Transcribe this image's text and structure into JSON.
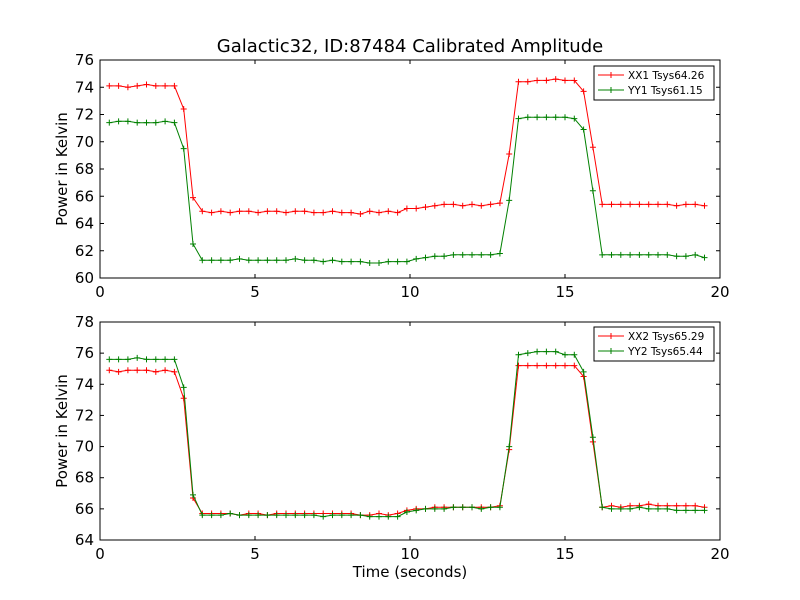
{
  "chart_data": [
    {
      "type": "line",
      "title": "Galactic32, ID:87484 Calibrated Amplitude",
      "xlabel": "",
      "ylabel": "Power in Kelvin",
      "xlim": [
        0,
        20
      ],
      "ylim": [
        60,
        76
      ],
      "xticks": [
        0,
        5,
        10,
        15,
        20
      ],
      "yticks": [
        60,
        62,
        64,
        66,
        68,
        70,
        72,
        74,
        76
      ],
      "grid": false,
      "legend": "top-right",
      "x": [
        0.3,
        0.6,
        0.9,
        1.2,
        1.5,
        1.8,
        2.1,
        2.4,
        2.7,
        3.0,
        3.3,
        3.6,
        3.9,
        4.2,
        4.5,
        4.8,
        5.1,
        5.4,
        5.7,
        6.0,
        6.3,
        6.6,
        6.9,
        7.2,
        7.5,
        7.8,
        8.1,
        8.4,
        8.7,
        9.0,
        9.3,
        9.6,
        9.9,
        10.2,
        10.5,
        10.8,
        11.1,
        11.4,
        11.7,
        12.0,
        12.3,
        12.6,
        12.9,
        13.2,
        13.5,
        13.8,
        14.1,
        14.4,
        14.7,
        15.0,
        15.3,
        15.6,
        15.9,
        16.2,
        16.5,
        16.8,
        17.1,
        17.4,
        17.7,
        18.0,
        18.3,
        18.6,
        18.9,
        19.2,
        19.5
      ],
      "series": [
        {
          "name": "XX1 Tsys64.26",
          "color": "#ff0000",
          "values": [
            74.1,
            74.1,
            74.0,
            74.1,
            74.2,
            74.1,
            74.1,
            74.1,
            72.4,
            65.9,
            64.9,
            64.8,
            64.9,
            64.8,
            64.9,
            64.9,
            64.8,
            64.9,
            64.9,
            64.8,
            64.9,
            64.9,
            64.8,
            64.8,
            64.9,
            64.8,
            64.8,
            64.7,
            64.9,
            64.8,
            64.9,
            64.8,
            65.1,
            65.1,
            65.2,
            65.3,
            65.4,
            65.4,
            65.3,
            65.4,
            65.3,
            65.4,
            65.5,
            69.1,
            74.4,
            74.4,
            74.5,
            74.5,
            74.6,
            74.5,
            74.5,
            73.7,
            69.6,
            65.4,
            65.4,
            65.4,
            65.4,
            65.4,
            65.4,
            65.4,
            65.4,
            65.3,
            65.4,
            65.4,
            65.3
          ]
        },
        {
          "name": "YY1 Tsys61.15",
          "color": "#008000",
          "values": [
            71.4,
            71.5,
            71.5,
            71.4,
            71.4,
            71.4,
            71.5,
            71.4,
            69.5,
            62.5,
            61.3,
            61.3,
            61.3,
            61.3,
            61.4,
            61.3,
            61.3,
            61.3,
            61.3,
            61.3,
            61.4,
            61.3,
            61.3,
            61.2,
            61.3,
            61.2,
            61.2,
            61.2,
            61.1,
            61.1,
            61.2,
            61.2,
            61.2,
            61.4,
            61.5,
            61.6,
            61.6,
            61.7,
            61.7,
            61.7,
            61.7,
            61.7,
            61.8,
            65.7,
            71.7,
            71.8,
            71.8,
            71.8,
            71.8,
            71.8,
            71.7,
            70.9,
            66.4,
            61.7,
            61.7,
            61.7,
            61.7,
            61.7,
            61.7,
            61.7,
            61.7,
            61.6,
            61.6,
            61.7,
            61.5
          ]
        }
      ]
    },
    {
      "type": "line",
      "title": "",
      "xlabel": "Time (seconds)",
      "ylabel": "Power in Kelvin",
      "xlim": [
        0,
        20
      ],
      "ylim": [
        64,
        78
      ],
      "xticks": [
        0,
        5,
        10,
        15,
        20
      ],
      "yticks": [
        64,
        66,
        68,
        70,
        72,
        74,
        76,
        78
      ],
      "grid": false,
      "legend": "top-right",
      "x": [
        0.3,
        0.6,
        0.9,
        1.2,
        1.5,
        1.8,
        2.1,
        2.4,
        2.7,
        3.0,
        3.3,
        3.6,
        3.9,
        4.2,
        4.5,
        4.8,
        5.1,
        5.4,
        5.7,
        6.0,
        6.3,
        6.6,
        6.9,
        7.2,
        7.5,
        7.8,
        8.1,
        8.4,
        8.7,
        9.0,
        9.3,
        9.6,
        9.9,
        10.2,
        10.5,
        10.8,
        11.1,
        11.4,
        11.7,
        12.0,
        12.3,
        12.6,
        12.9,
        13.2,
        13.5,
        13.8,
        14.1,
        14.4,
        14.7,
        15.0,
        15.3,
        15.6,
        15.9,
        16.2,
        16.5,
        16.8,
        17.1,
        17.4,
        17.7,
        18.0,
        18.3,
        18.6,
        18.9,
        19.2,
        19.5
      ],
      "series": [
        {
          "name": "XX2 Tsys65.29",
          "color": "#ff0000",
          "values": [
            74.9,
            74.8,
            74.9,
            74.9,
            74.9,
            74.8,
            74.9,
            74.8,
            73.1,
            66.7,
            65.7,
            65.7,
            65.7,
            65.7,
            65.6,
            65.7,
            65.7,
            65.6,
            65.7,
            65.7,
            65.7,
            65.7,
            65.7,
            65.7,
            65.7,
            65.7,
            65.7,
            65.6,
            65.6,
            65.7,
            65.6,
            65.7,
            65.9,
            66.0,
            66.0,
            66.1,
            66.1,
            66.1,
            66.1,
            66.1,
            66.1,
            66.1,
            66.2,
            69.8,
            75.2,
            75.2,
            75.2,
            75.2,
            75.2,
            75.2,
            75.2,
            74.5,
            70.3,
            66.1,
            66.2,
            66.1,
            66.2,
            66.2,
            66.3,
            66.2,
            66.2,
            66.2,
            66.2,
            66.2,
            66.1
          ]
        },
        {
          "name": "YY2 Tsys65.44",
          "color": "#008000",
          "values": [
            75.6,
            75.6,
            75.6,
            75.7,
            75.6,
            75.6,
            75.6,
            75.6,
            73.8,
            66.9,
            65.6,
            65.6,
            65.6,
            65.7,
            65.6,
            65.6,
            65.6,
            65.6,
            65.6,
            65.6,
            65.6,
            65.6,
            65.6,
            65.5,
            65.6,
            65.6,
            65.6,
            65.6,
            65.5,
            65.5,
            65.5,
            65.5,
            65.8,
            65.9,
            66.0,
            66.0,
            66.0,
            66.1,
            66.1,
            66.1,
            66.0,
            66.1,
            66.1,
            70.0,
            75.9,
            76.0,
            76.1,
            76.1,
            76.1,
            75.9,
            75.9,
            74.8,
            70.6,
            66.1,
            66.0,
            66.0,
            66.0,
            66.1,
            66.0,
            66.0,
            66.0,
            65.9,
            65.9,
            65.9,
            65.9
          ]
        }
      ]
    }
  ]
}
